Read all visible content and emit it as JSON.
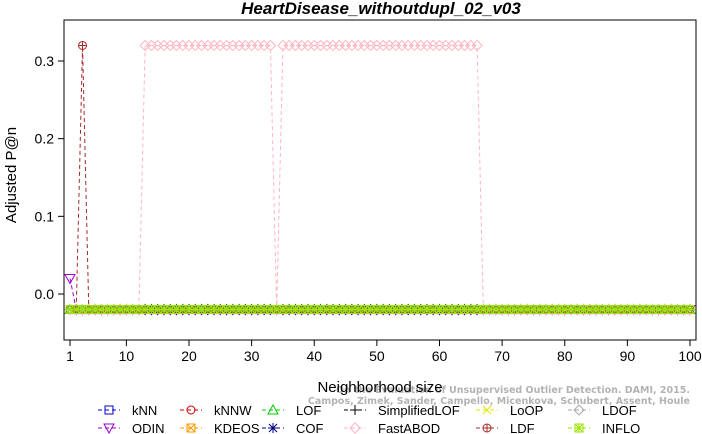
{
  "chart_data": {
    "type": "line",
    "title": "HeartDisease_withoutdupl_02_v03",
    "xlabel": "Neighborhood size",
    "ylabel": "Adjusted P@n",
    "xlim": [
      1,
      100
    ],
    "ylim": [
      -0.028,
      0.33
    ],
    "x_ticks": [
      1,
      10,
      20,
      30,
      40,
      50,
      60,
      70,
      80,
      90,
      100
    ],
    "y_ticks": [
      0.0,
      0.1,
      0.2,
      0.3
    ],
    "y_tick_labels": [
      "0.0",
      "0.1",
      "0.2",
      "0.3"
    ],
    "baseline": -0.02,
    "legend_position": "bottom",
    "series": [
      {
        "name": "kNN",
        "color": "#0000cc",
        "marker": "square",
        "baseline": -0.02,
        "overrides": []
      },
      {
        "name": "kNNW",
        "color": "#cc0000",
        "marker": "circle",
        "baseline": -0.02,
        "overrides": []
      },
      {
        "name": "LOF",
        "color": "#00cc00",
        "marker": "triangle-up",
        "baseline": -0.02,
        "overrides": []
      },
      {
        "name": "SimplifiedLOF",
        "color": "#000000",
        "marker": "plus",
        "baseline": -0.02,
        "overrides": []
      },
      {
        "name": "LoOP",
        "color": "#e6e600",
        "marker": "cross",
        "baseline": -0.02,
        "overrides": []
      },
      {
        "name": "LDOF",
        "color": "#aaaaaa",
        "marker": "diamond",
        "baseline": -0.02,
        "overrides": []
      },
      {
        "name": "ODIN",
        "color": "#9900cc",
        "marker": "triangle-down",
        "baseline": -0.02,
        "overrides": [
          [
            1,
            0.02
          ]
        ]
      },
      {
        "name": "KDEOS",
        "color": "#ff9900",
        "marker": "square-x",
        "baseline": -0.02,
        "overrides": []
      },
      {
        "name": "COF",
        "color": "#000080",
        "marker": "asterisk",
        "baseline": -0.02,
        "overrides": []
      },
      {
        "name": "FastABOD",
        "color": "#ffb6c1",
        "marker": "diamond",
        "baseline": -0.02,
        "overrides": [
          [
            13,
            33,
            0.32
          ],
          [
            35,
            66,
            0.32
          ]
        ]
      },
      {
        "name": "LDF",
        "color": "#a52a2a",
        "marker": "circle-plus",
        "baseline": -0.02,
        "overrides": [
          [
            3,
            0.32
          ]
        ]
      },
      {
        "name": "INFLO",
        "color": "#99e600",
        "marker": "square-star",
        "baseline": -0.02,
        "overrides": []
      }
    ]
  },
  "watermark": {
    "line1": "Campos, Zimek, Sander, Campello, Micenkova, Schubert, Assent, Houle",
    "line2": "On the Evaluation of Unsupervised Outlier Detection. DAMI, 2015."
  }
}
